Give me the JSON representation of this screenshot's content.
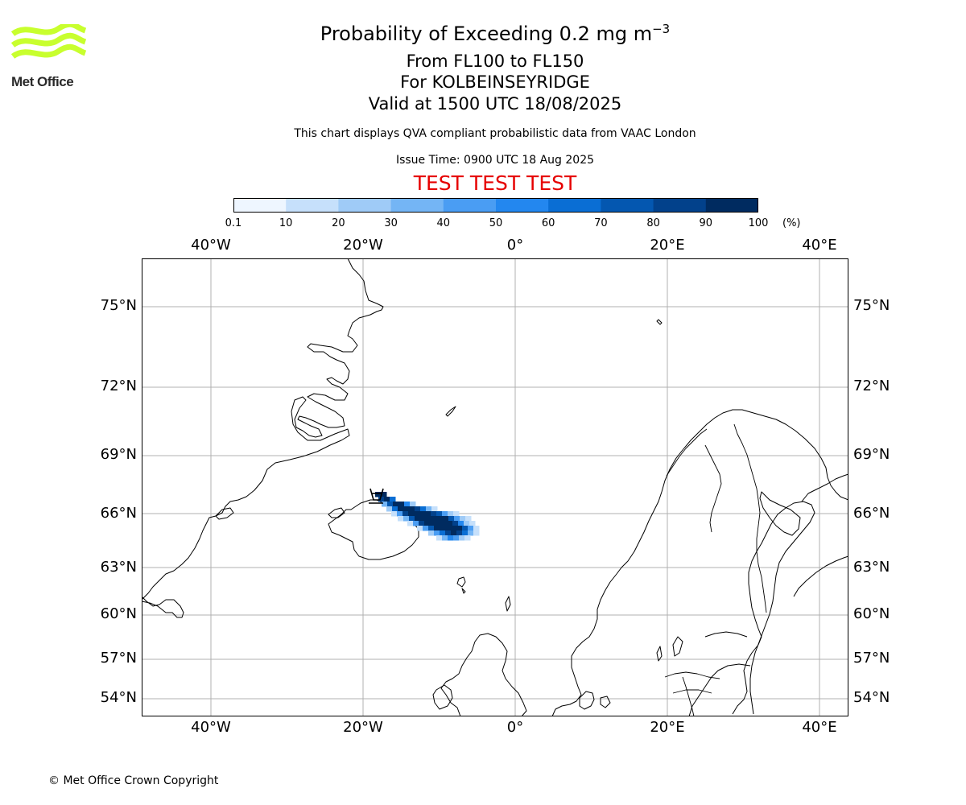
{
  "logo": {
    "text": "Met Office",
    "stripe_color": "#c8ff2e"
  },
  "header": {
    "title_main": "Probability of Exceeding 0.2 mg m",
    "title_exponent": "−3",
    "flight_levels": "From FL100 to FL150",
    "location": "For KOLBEINSEYRIDGE",
    "valid_time": "Valid at 1500 UTC 18/08/2025",
    "note": "This chart displays QVA compliant probabilistic data from VAAC London",
    "issue_time": "Issue Time: 0900 UTC 18 Aug 2025",
    "test_banner": "TEST TEST TEST"
  },
  "colorbar": {
    "ticks": [
      "0.1",
      "10",
      "20",
      "30",
      "40",
      "50",
      "60",
      "70",
      "80",
      "90",
      "100"
    ],
    "unit": "(%)",
    "colors": [
      "#eef6ff",
      "#c6e0fb",
      "#9fcbf7",
      "#74b5f5",
      "#4a9df3",
      "#2387ef",
      "#0a6ed4",
      "#0457b0",
      "#02418b",
      "#002b60"
    ]
  },
  "map": {
    "lon_labels": [
      "40°W",
      "20°W",
      "0°",
      "20°E",
      "40°E"
    ],
    "lat_labels": [
      "75°N",
      "72°N",
      "69°N",
      "66°N",
      "63°N",
      "60°N",
      "57°N",
      "54°N"
    ],
    "ash_plume": {
      "description_values": "probability cells extending ESE from northern Iceland",
      "max_probability": 100
    }
  },
  "footer": {
    "copyright": "© Met Office Crown Copyright"
  }
}
